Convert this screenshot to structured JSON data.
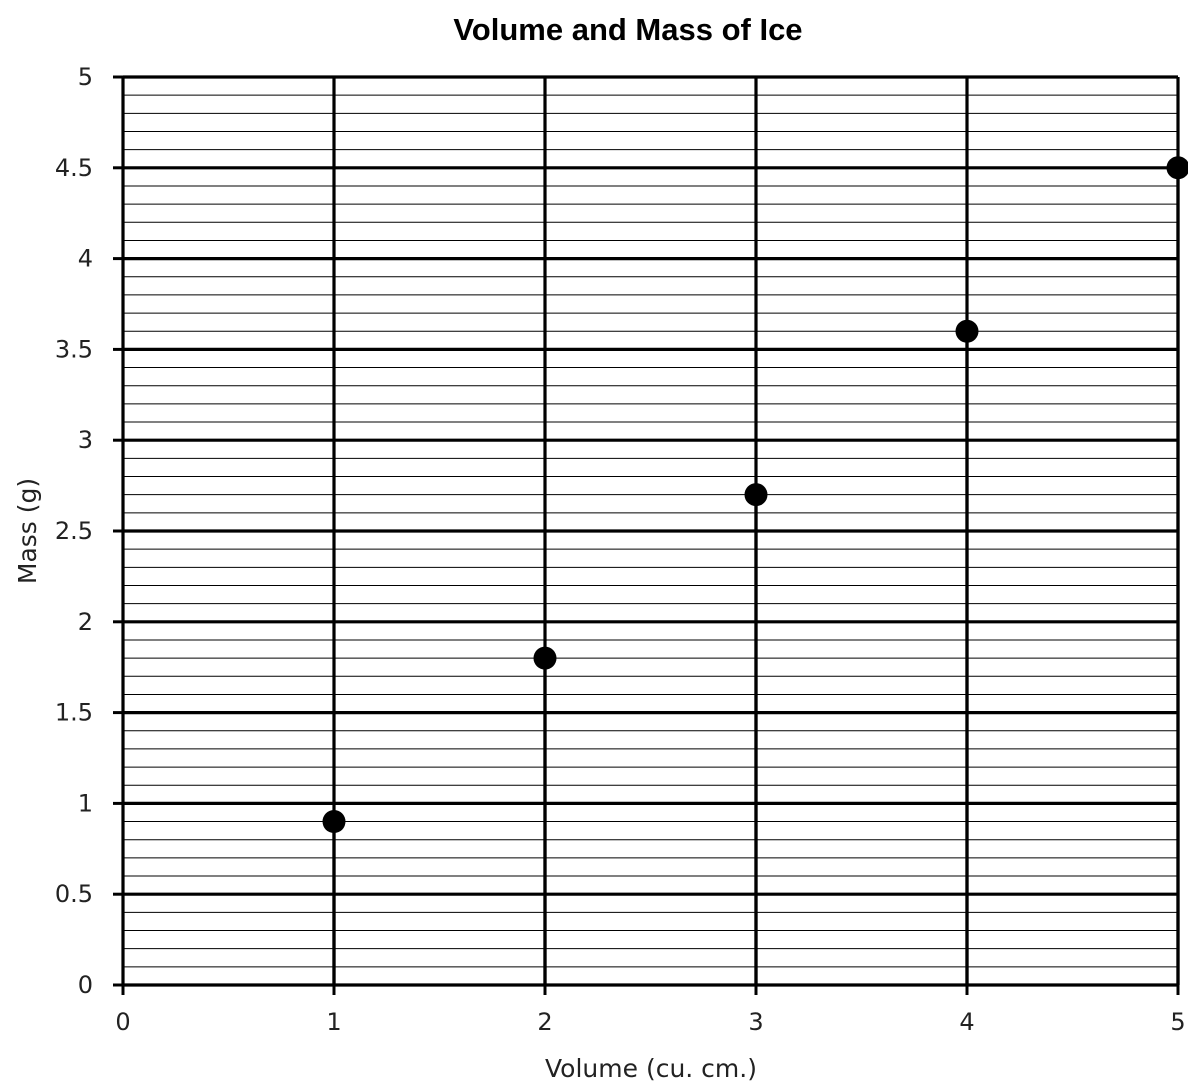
{
  "chart_data": {
    "type": "scatter",
    "title": "Volume and Mass of Ice",
    "xlabel": "Volume (cu. cm.)",
    "ylabel": "Mass (g)",
    "xlim": [
      0,
      5
    ],
    "ylim": [
      0,
      5
    ],
    "x_ticks": [
      "0",
      "1",
      "2",
      "3",
      "4",
      "5"
    ],
    "y_ticks": [
      "0",
      "0.5",
      "1",
      "1.5",
      "2",
      "2.5",
      "3",
      "3.5",
      "4",
      "4.5",
      "5"
    ],
    "grid": true,
    "minor_grid_step_y": 0.1,
    "drop_lines": true,
    "marker_color": "#000000",
    "x": [
      1,
      2,
      3,
      4,
      5
    ],
    "y": [
      0.9,
      1.8,
      2.7,
      3.6,
      4.5
    ]
  }
}
